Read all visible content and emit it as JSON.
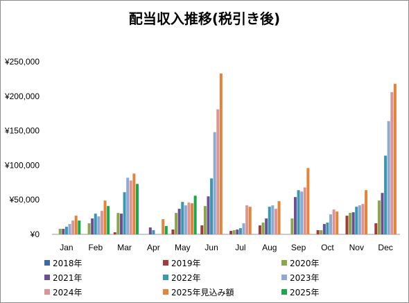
{
  "chart_data": {
    "type": "bar",
    "title": "配当収入推移(税引き後)",
    "xlabel": "",
    "ylabel": "",
    "categories": [
      "Jan",
      "Feb",
      "Mar",
      "Apr",
      "May",
      "Jun",
      "Jul",
      "Aug",
      "Sep",
      "Oct",
      "Nov",
      "Dec"
    ],
    "ylim": [
      0,
      250000
    ],
    "yticks": [
      0,
      50000,
      100000,
      150000,
      200000,
      250000
    ],
    "ytick_labels": [
      "¥0",
      "¥50,000",
      "¥100,000",
      "¥150,000",
      "¥200,000",
      "¥250,000"
    ],
    "grid": false,
    "legend_position": "bottom",
    "series": [
      {
        "name": "2018年",
        "color": "#3f68a8",
        "values": [
          0,
          0,
          0,
          0,
          0,
          0,
          0,
          0,
          0,
          0,
          0,
          0
        ]
      },
      {
        "name": "2019年",
        "color": "#a33b3b",
        "values": [
          0,
          0,
          3000,
          0,
          7000,
          13000,
          5000,
          13000,
          0,
          6000,
          27000,
          16000
        ]
      },
      {
        "name": "2020年",
        "color": "#8aa84b",
        "values": [
          8000,
          16000,
          31000,
          0,
          31000,
          41000,
          6000,
          17000,
          23000,
          6000,
          31000,
          49000
        ]
      },
      {
        "name": "2021年",
        "color": "#6b4f93",
        "values": [
          8000,
          23000,
          30000,
          10000,
          37000,
          55000,
          7000,
          23000,
          54000,
          15000,
          32000,
          60000
        ]
      },
      {
        "name": "2022年",
        "color": "#3b97b0",
        "values": [
          11000,
          30000,
          61000,
          6000,
          47000,
          81000,
          9000,
          40000,
          64000,
          17000,
          40000,
          114000
        ]
      },
      {
        "name": "2023年",
        "color": "#8ea9d3",
        "values": [
          15000,
          26000,
          82000,
          0,
          42000,
          148000,
          16000,
          42000,
          62000,
          29000,
          42000,
          164000
        ]
      },
      {
        "name": "2024年",
        "color": "#d99694",
        "values": [
          20000,
          34000,
          78000,
          0,
          46000,
          181000,
          42000,
          37000,
          68000,
          36000,
          44000,
          206000
        ]
      },
      {
        "name": "2025年見込み額",
        "color": "#e4843a",
        "values": [
          27000,
          49000,
          88000,
          22000,
          45000,
          233000,
          40000,
          48000,
          96000,
          33000,
          64000,
          218000
        ]
      },
      {
        "name": "2025年",
        "color": "#1aa64c",
        "values": [
          20000,
          41000,
          73000,
          12000,
          56000,
          0,
          0,
          0,
          0,
          0,
          0,
          0
        ]
      }
    ]
  }
}
